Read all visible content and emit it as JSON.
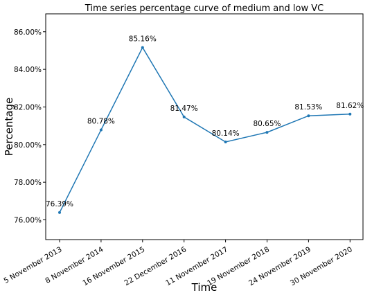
{
  "chart_data": {
    "type": "line",
    "title": "Time series percentage curve of medium and low VC",
    "xlabel": "Time",
    "ylabel": "Percentage",
    "x": [
      "5 November 2013",
      "8 November 2014",
      "16 November 2015",
      "22 December 2016",
      "11 November 2017",
      "19 November 2018",
      "24 November 2019",
      "30 November 2020"
    ],
    "values": [
      76.39,
      80.78,
      85.16,
      81.47,
      80.14,
      80.65,
      81.53,
      81.62
    ],
    "data_labels": [
      "76.39%",
      "80.78%",
      "85.16%",
      "81.47%",
      "80.14%",
      "80.65%",
      "81.53%",
      "81.62%"
    ],
    "yticks": [
      76.0,
      78.0,
      80.0,
      82.0,
      84.0,
      86.0
    ],
    "ytick_labels": [
      "76.00%",
      "78.00%",
      "80.00%",
      "82.00%",
      "84.00%",
      "86.00%"
    ],
    "ylim": [
      74.95,
      86.95
    ],
    "grid": false,
    "line_color": "#1f77b4"
  }
}
